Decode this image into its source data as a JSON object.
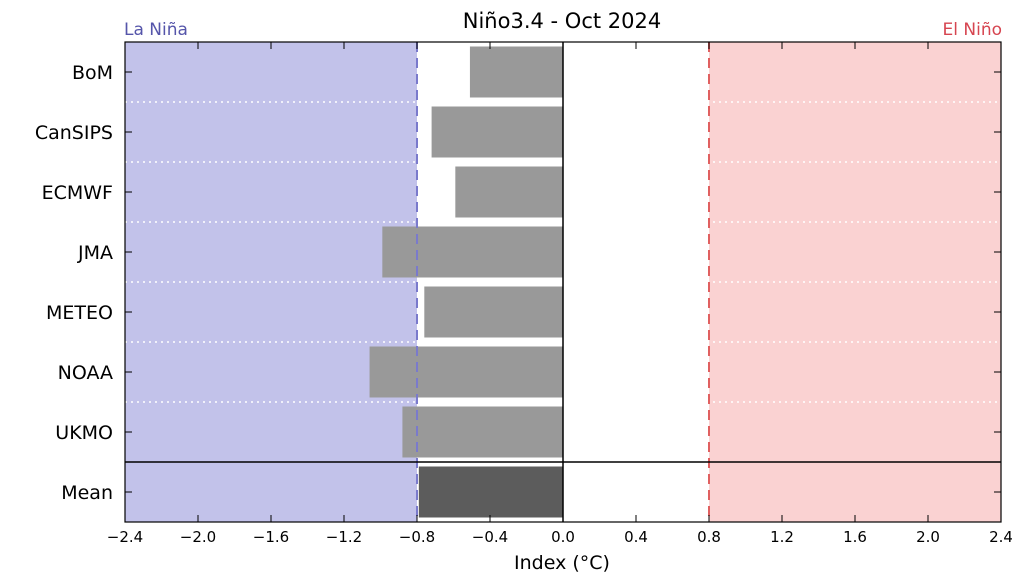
{
  "chart_data": {
    "type": "bar",
    "orientation": "horizontal",
    "title": "Niño3.4 - Oct 2024",
    "xlabel": "Index (°C)",
    "ylabel": "",
    "xlim": [
      -2.4,
      2.4
    ],
    "xticks": [
      "−2.4",
      "−2.0",
      "−1.6",
      "−1.2",
      "−0.8",
      "−0.4",
      "0.0",
      "0.4",
      "0.8",
      "1.2",
      "1.6",
      "2.0",
      "2.4"
    ],
    "categories": [
      "BoM",
      "CanSIPS",
      "ECMWF",
      "JMA",
      "METEO",
      "NOAA",
      "UKMO",
      "Mean"
    ],
    "values": [
      -0.51,
      -0.72,
      -0.59,
      -0.99,
      -0.76,
      -1.06,
      -0.88,
      -0.79
    ],
    "thresholds": [
      -0.8,
      0.8
    ],
    "regions": {
      "la_nina": {
        "label": "La Niña",
        "range": [
          -2.4,
          -0.8
        ],
        "color": "#c2c2ea",
        "label_color": "#5555aa"
      },
      "el_nino": {
        "label": "El Niño",
        "range": [
          0.8,
          2.4
        ],
        "color": "#fad2d2",
        "label_color": "#d64550"
      }
    },
    "colors": {
      "bar": "#999999",
      "mean_bar": "#5c5c5c",
      "la_nina_line": "#7a7acc",
      "el_nino_line": "#e06060"
    },
    "grid": "dotted white separators between models"
  }
}
